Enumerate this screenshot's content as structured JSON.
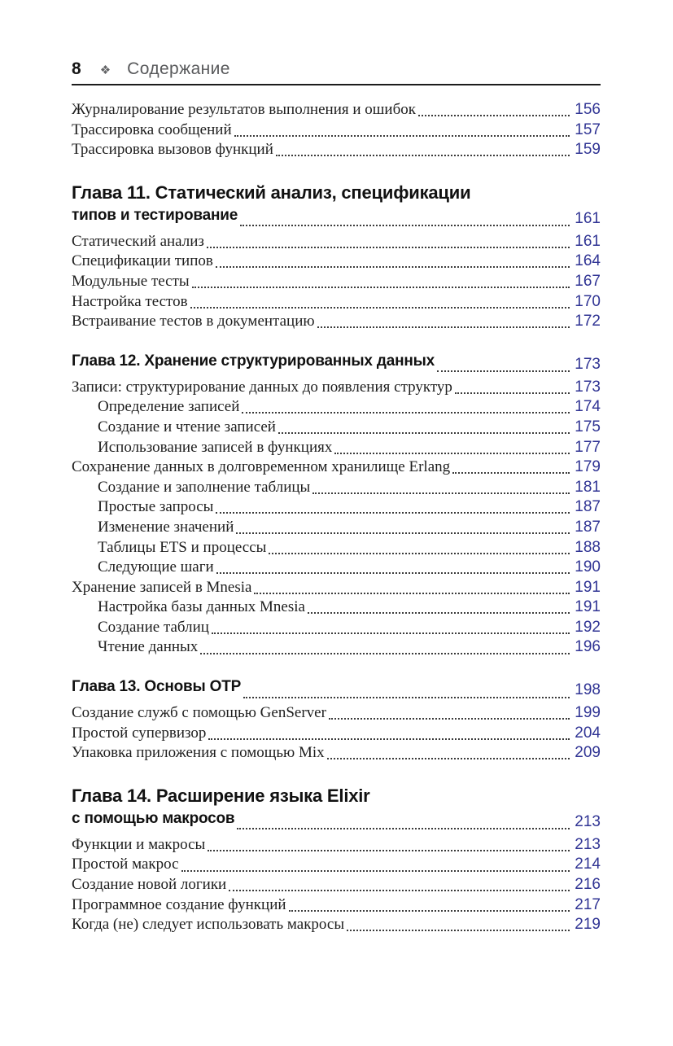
{
  "header": {
    "page_number": "8",
    "separator_icon": "four-diamonds-icon",
    "title": "Содержание"
  },
  "colors": {
    "page_number_blue": "#303494",
    "body_text": "#1e1e1e",
    "header_gray": "#58595b"
  },
  "toc": [
    {
      "kind": "entry",
      "level": 0,
      "label": "Журналирование результатов выполнения и ошибок",
      "page": "156"
    },
    {
      "kind": "entry",
      "level": 0,
      "label": "Трассировка сообщений",
      "page": "157"
    },
    {
      "kind": "entry",
      "level": 0,
      "label": "Трассировка вызовов функций",
      "page": "159"
    },
    {
      "kind": "chapter",
      "lines": [
        "Глава 11. Статический анализ, спецификации",
        "типов и тестирование"
      ],
      "page": "161"
    },
    {
      "kind": "entry",
      "level": 0,
      "label": "Статический анализ",
      "page": "161"
    },
    {
      "kind": "entry",
      "level": 0,
      "label": "Спецификации типов",
      "page": "164"
    },
    {
      "kind": "entry",
      "level": 0,
      "label": "Модульные тесты",
      "page": "167"
    },
    {
      "kind": "entry",
      "level": 0,
      "label": "Настройка тестов",
      "page": "170"
    },
    {
      "kind": "entry",
      "level": 0,
      "label": "Встраивание тестов в документацию",
      "page": "172"
    },
    {
      "kind": "chapter",
      "lines": [
        "Глава 12. Хранение структурированных данных"
      ],
      "page": "173"
    },
    {
      "kind": "entry",
      "level": 0,
      "label": "Записи: структурирование данных до появления структур",
      "page": "173"
    },
    {
      "kind": "entry",
      "level": 1,
      "label": "Определение записей",
      "page": "174"
    },
    {
      "kind": "entry",
      "level": 1,
      "label": "Создание и чтение записей",
      "page": "175"
    },
    {
      "kind": "entry",
      "level": 1,
      "label": "Использование записей в функциях",
      "page": "177"
    },
    {
      "kind": "entry",
      "level": 0,
      "label": "Сохранение данных в долговременном хранилище Erlang",
      "page": "179"
    },
    {
      "kind": "entry",
      "level": 1,
      "label": "Создание и заполнение таблицы",
      "page": "181"
    },
    {
      "kind": "entry",
      "level": 1,
      "label": "Простые запросы",
      "page": "187"
    },
    {
      "kind": "entry",
      "level": 1,
      "label": "Изменение значений",
      "page": "187"
    },
    {
      "kind": "entry",
      "level": 1,
      "label": "Таблицы ETS и процессы",
      "page": "188"
    },
    {
      "kind": "entry",
      "level": 1,
      "label": "Следующие шаги",
      "page": "190"
    },
    {
      "kind": "entry",
      "level": 0,
      "label": "Хранение записей в Mnesia",
      "page": "191"
    },
    {
      "kind": "entry",
      "level": 1,
      "label": "Настройка базы данных Mnesia",
      "page": "191"
    },
    {
      "kind": "entry",
      "level": 1,
      "label": "Создание таблиц",
      "page": "192"
    },
    {
      "kind": "entry",
      "level": 1,
      "label": "Чтение данных",
      "page": "196"
    },
    {
      "kind": "chapter",
      "lines": [
        "Глава 13. Основы OTP"
      ],
      "page": "198"
    },
    {
      "kind": "entry",
      "level": 0,
      "label": "Создание служб с помощью GenServer",
      "page": "199"
    },
    {
      "kind": "entry",
      "level": 0,
      "label": "Простой супервизор",
      "page": "204"
    },
    {
      "kind": "entry",
      "level": 0,
      "label": "Упаковка приложения с помощью Mix",
      "page": "209"
    },
    {
      "kind": "chapter",
      "lines": [
        "Глава 14. Расширение языка Elixir",
        "с помощью макросов"
      ],
      "page": "213"
    },
    {
      "kind": "entry",
      "level": 0,
      "label": "Функции и макросы",
      "page": "213"
    },
    {
      "kind": "entry",
      "level": 0,
      "label": "Простой макрос",
      "page": "214"
    },
    {
      "kind": "entry",
      "level": 0,
      "label": "Создание новой логики",
      "page": "216"
    },
    {
      "kind": "entry",
      "level": 0,
      "label": "Программное создание функций",
      "page": "217"
    },
    {
      "kind": "entry",
      "level": 0,
      "label": "Когда (не) следует использовать макросы",
      "page": "219"
    }
  ]
}
